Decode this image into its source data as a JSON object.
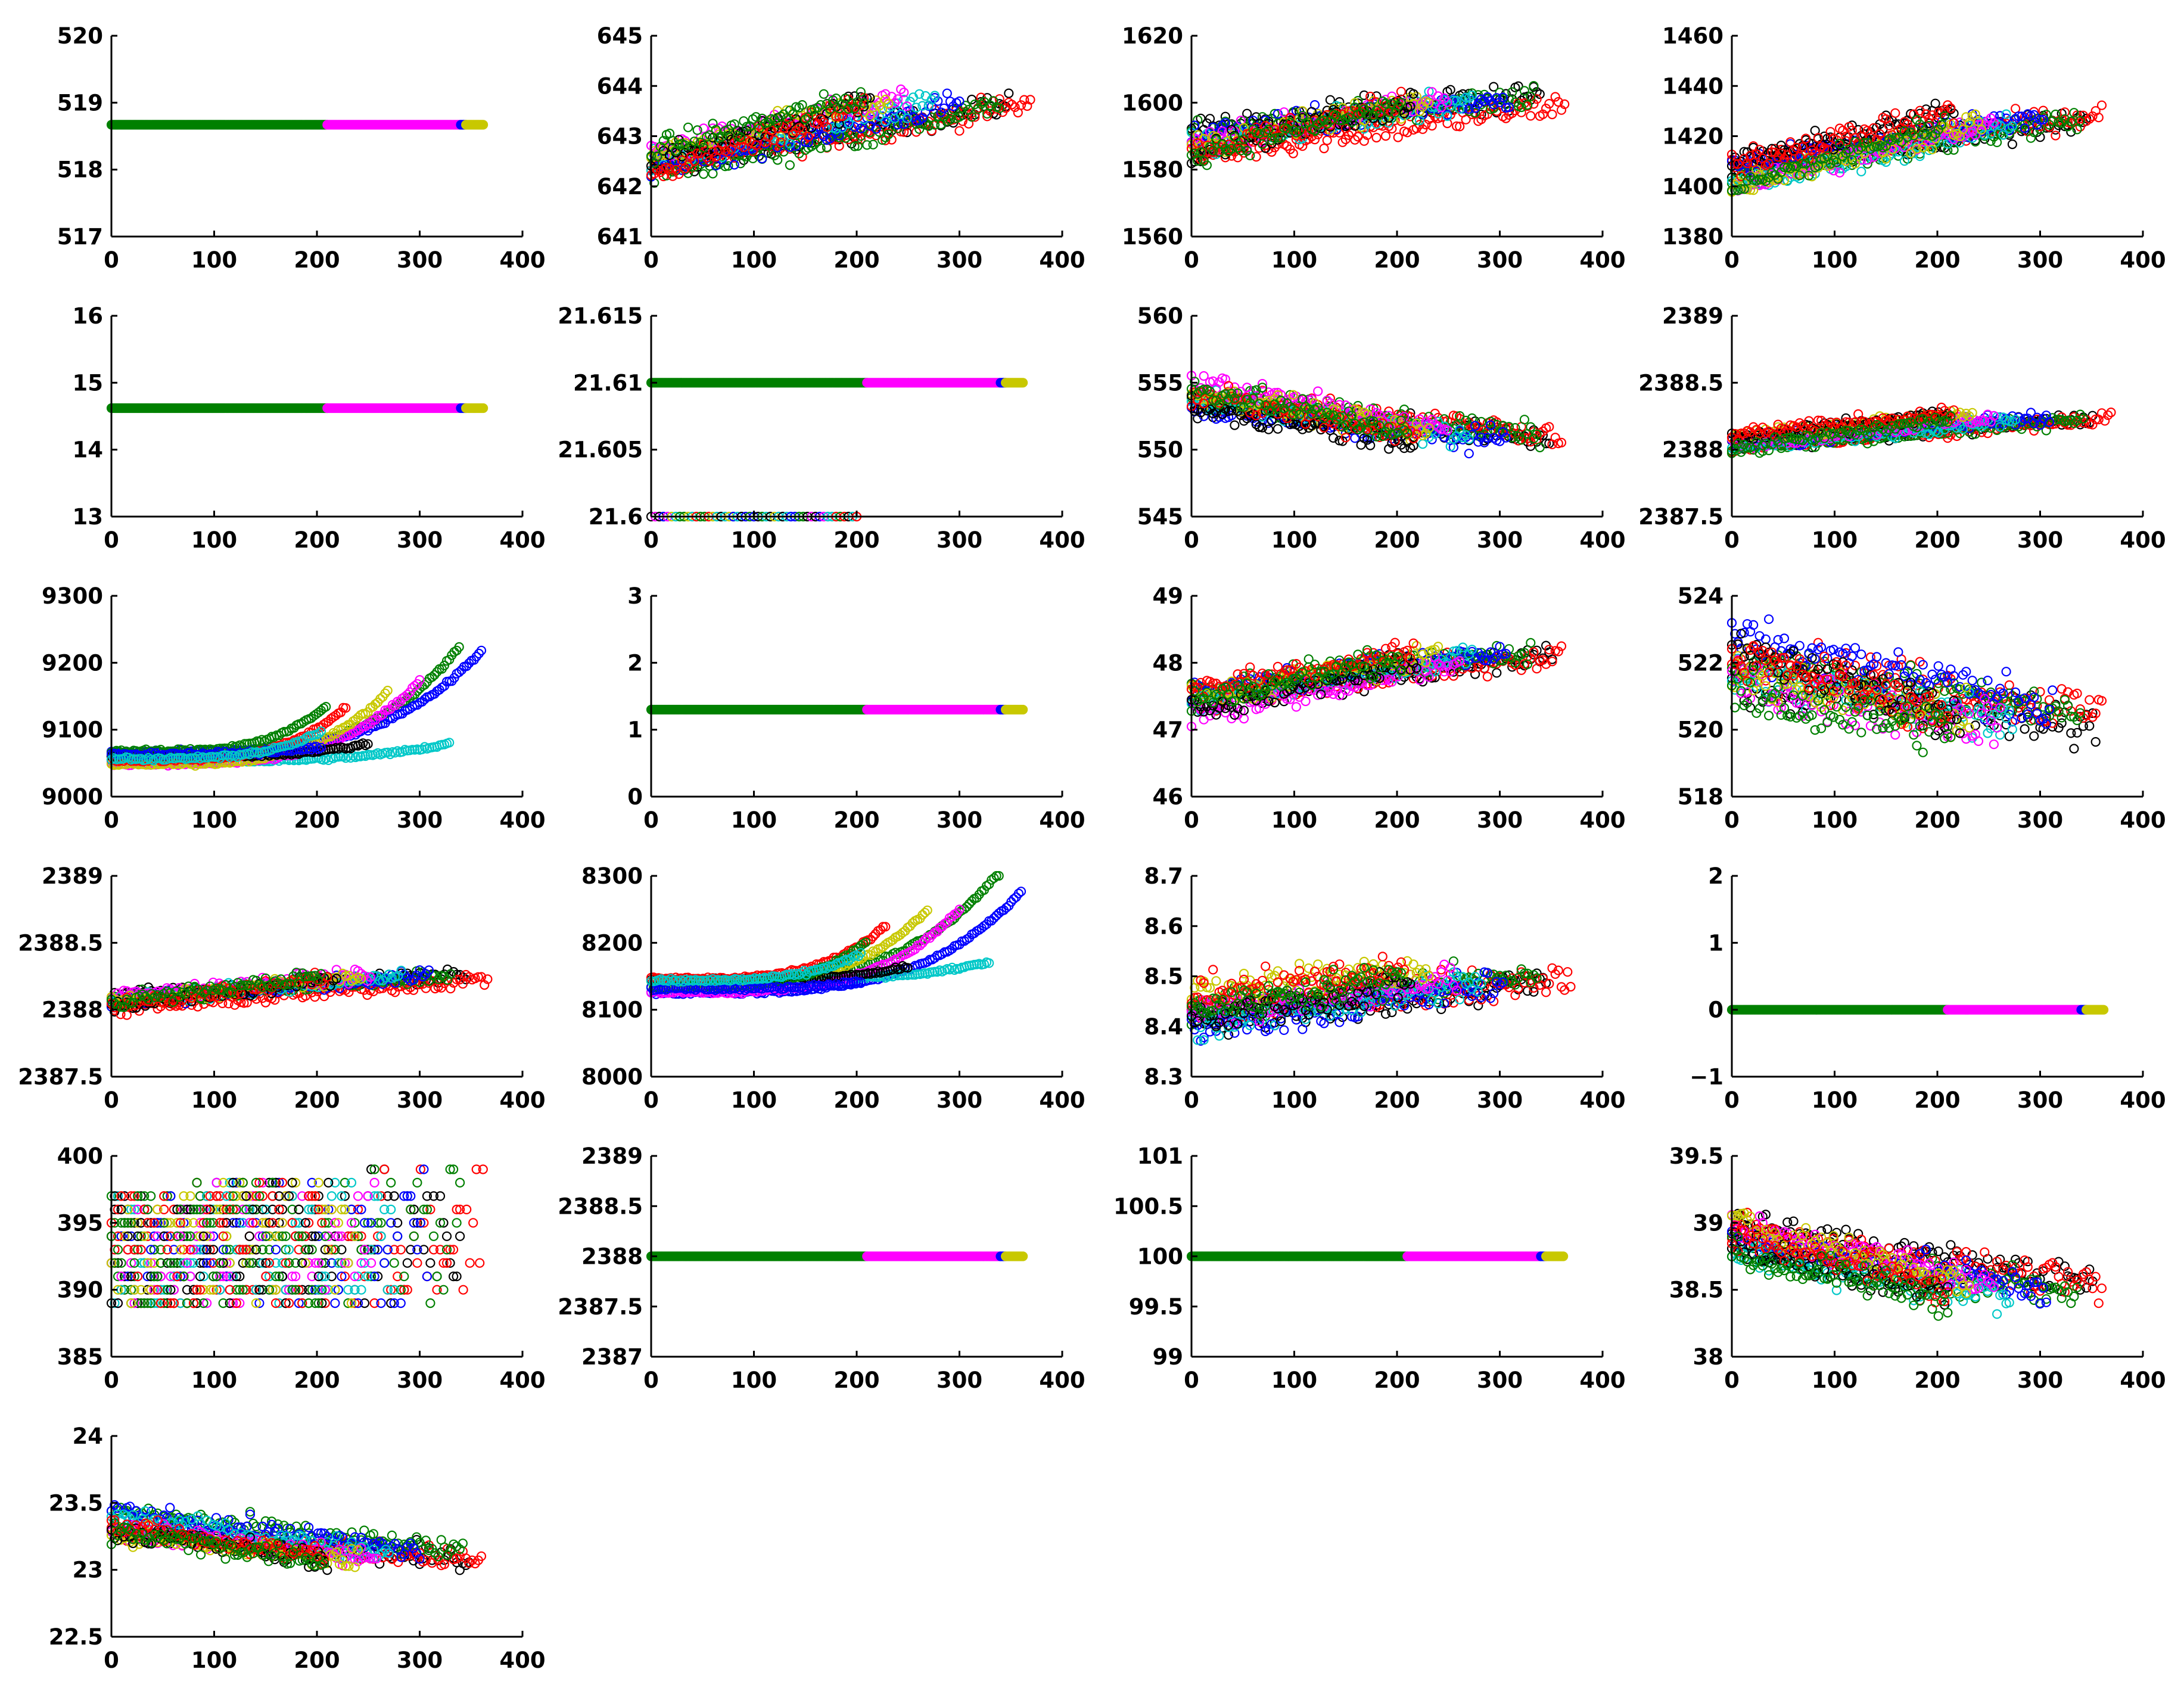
{
  "figure": {
    "description_free": true
  },
  "colors": {
    "black": "#000000",
    "red": "#ff0000",
    "green": "#008000",
    "blue": "#0000ff",
    "cyan": "#00c8c8",
    "magenta": "#ff00ff",
    "yellow": "#c8c800"
  },
  "chart_data": [
    {
      "type": "scatter",
      "pattern": "flat",
      "xlim": [
        0,
        400
      ],
      "xticks": [
        "0",
        "100",
        "200",
        "300",
        "400"
      ],
      "ylim": [
        517,
        520
      ],
      "yticks": [
        "517",
        "518",
        "519",
        "520"
      ],
      "flat_value": 518.67
    },
    {
      "type": "scatter",
      "pattern": "band_up",
      "xlim": [
        0,
        400
      ],
      "xticks": [
        "0",
        "100",
        "200",
        "300",
        "400"
      ],
      "ylim": [
        641,
        645
      ],
      "yticks": [
        "641",
        "642",
        "643",
        "644",
        "645"
      ],
      "start": 642.5,
      "end": 643.7,
      "spread": 0.9
    },
    {
      "type": "scatter",
      "pattern": "band_up",
      "xlim": [
        0,
        400
      ],
      "xticks": [
        "0",
        "100",
        "200",
        "300",
        "400"
      ],
      "ylim": [
        1560,
        1620
      ],
      "yticks": [
        "1560",
        "1580",
        "1600",
        "1620"
      ],
      "start": 1588,
      "end": 1601,
      "spread": 14
    },
    {
      "type": "scatter",
      "pattern": "band_up",
      "xlim": [
        0,
        400
      ],
      "xticks": [
        "0",
        "100",
        "200",
        "300",
        "400"
      ],
      "ylim": [
        1380,
        1460
      ],
      "yticks": [
        "1380",
        "1400",
        "1420",
        "1440",
        "1460"
      ],
      "start": 1405,
      "end": 1428,
      "spread": 18
    },
    {
      "type": "scatter",
      "pattern": "flat",
      "xlim": [
        0,
        400
      ],
      "xticks": [
        "0",
        "100",
        "200",
        "300",
        "400"
      ],
      "ylim": [
        13,
        16
      ],
      "yticks": [
        "13",
        "14",
        "15",
        "16"
      ],
      "flat_value": 14.62
    },
    {
      "type": "scatter",
      "pattern": "two_level",
      "xlim": [
        0,
        400
      ],
      "xticks": [
        "0",
        "100",
        "200",
        "300",
        "400"
      ],
      "ylim": [
        21.6,
        21.615
      ],
      "yticks": [
        "21.6",
        "21.605",
        "21.61",
        "21.615"
      ],
      "flat_value": 21.61,
      "low_value": 21.6,
      "low_xmax": 200
    },
    {
      "type": "scatter",
      "pattern": "band_down",
      "xlim": [
        0,
        400
      ],
      "xticks": [
        "0",
        "100",
        "200",
        "300",
        "400"
      ],
      "ylim": [
        545,
        560
      ],
      "yticks": [
        "545",
        "550",
        "555",
        "560"
      ],
      "start": 554,
      "end": 551,
      "spread": 3.2
    },
    {
      "type": "scatter",
      "pattern": "band_up",
      "xlim": [
        0,
        400
      ],
      "xticks": [
        "0",
        "100",
        "200",
        "300",
        "400"
      ],
      "ylim": [
        2387.5,
        2389
      ],
      "yticks": [
        "2387.5",
        "2388",
        "2388.5",
        "2389"
      ],
      "start": 2388.05,
      "end": 2388.25,
      "spread": 0.18
    },
    {
      "type": "scatter",
      "pattern": "fan_up",
      "xlim": [
        0,
        400
      ],
      "xticks": [
        "0",
        "100",
        "200",
        "300",
        "400"
      ],
      "ylim": [
        9000,
        9300
      ],
      "yticks": [
        "9000",
        "9100",
        "9200",
        "9300"
      ],
      "base": 9060,
      "spread": 30
    },
    {
      "type": "scatter",
      "pattern": "flat",
      "xlim": [
        0,
        400
      ],
      "xticks": [
        "0",
        "100",
        "200",
        "300",
        "400"
      ],
      "ylim": [
        0,
        3
      ],
      "yticks": [
        "0",
        "1",
        "2",
        "3"
      ],
      "flat_value": 1.3
    },
    {
      "type": "scatter",
      "pattern": "band_up",
      "xlim": [
        0,
        400
      ],
      "xticks": [
        "0",
        "100",
        "200",
        "300",
        "400"
      ],
      "ylim": [
        46,
        49
      ],
      "yticks": [
        "46",
        "47",
        "48",
        "49"
      ],
      "start": 47.4,
      "end": 48.1,
      "spread": 0.7
    },
    {
      "type": "scatter",
      "pattern": "band_down",
      "xlim": [
        0,
        400
      ],
      "xticks": [
        "0",
        "100",
        "200",
        "300",
        "400"
      ],
      "ylim": [
        518,
        524
      ],
      "yticks": [
        "518",
        "520",
        "522",
        "524"
      ],
      "start": 521.8,
      "end": 520.3,
      "spread": 2.6
    },
    {
      "type": "scatter",
      "pattern": "band_up",
      "xlim": [
        0,
        400
      ],
      "xticks": [
        "0",
        "100",
        "200",
        "300",
        "400"
      ],
      "ylim": [
        2387.5,
        2389
      ],
      "yticks": [
        "2387.5",
        "2388",
        "2388.5",
        "2389"
      ],
      "start": 2388.05,
      "end": 2388.25,
      "spread": 0.18
    },
    {
      "type": "scatter",
      "pattern": "fan_up",
      "xlim": [
        0,
        400
      ],
      "xticks": [
        "0",
        "100",
        "200",
        "300",
        "400"
      ],
      "ylim": [
        8000,
        8300
      ],
      "yticks": [
        "8000",
        "8100",
        "8200",
        "8300"
      ],
      "base": 8140,
      "spread": 30
    },
    {
      "type": "scatter",
      "pattern": "band_up",
      "xlim": [
        0,
        400
      ],
      "xticks": [
        "0",
        "100",
        "200",
        "300",
        "400"
      ],
      "ylim": [
        8.3,
        8.7
      ],
      "yticks": [
        "8.3",
        "8.4",
        "8.5",
        "8.6",
        "8.7"
      ],
      "start": 8.43,
      "end": 8.5,
      "spread": 0.12
    },
    {
      "type": "scatter",
      "pattern": "flat",
      "xlim": [
        0,
        400
      ],
      "xticks": [
        "0",
        "100",
        "200",
        "300",
        "400"
      ],
      "ylim": [
        -1,
        2
      ],
      "yticks": [
        "−1",
        "0",
        "1",
        "2"
      ],
      "flat_value": 0
    },
    {
      "type": "scatter",
      "pattern": "levels",
      "xlim": [
        0,
        400
      ],
      "xticks": [
        "0",
        "100",
        "200",
        "300",
        "400"
      ],
      "ylim": [
        385,
        400
      ],
      "yticks": [
        "385",
        "390",
        "395",
        "400"
      ],
      "levels": [
        389,
        390,
        391,
        392,
        393,
        394,
        395,
        396,
        397
      ]
    },
    {
      "type": "scatter",
      "pattern": "flat",
      "xlim": [
        0,
        400
      ],
      "xticks": [
        "0",
        "100",
        "200",
        "300",
        "400"
      ],
      "ylim": [
        2387,
        2389
      ],
      "yticks": [
        "2387",
        "2387.5",
        "2388",
        "2388.5",
        "2389"
      ],
      "flat_value": 2388
    },
    {
      "type": "scatter",
      "pattern": "flat",
      "xlim": [
        0,
        400
      ],
      "xticks": [
        "0",
        "100",
        "200",
        "300",
        "400"
      ],
      "ylim": [
        99,
        101
      ],
      "yticks": [
        "99",
        "99.5",
        "100",
        "100.5",
        "101"
      ],
      "flat_value": 100
    },
    {
      "type": "scatter",
      "pattern": "band_down",
      "xlim": [
        0,
        400
      ],
      "xticks": [
        "0",
        "100",
        "200",
        "300",
        "400"
      ],
      "ylim": [
        38,
        39.5
      ],
      "yticks": [
        "38",
        "38.5",
        "39",
        "39.5"
      ],
      "start": 38.9,
      "end": 38.5,
      "spread": 0.45
    },
    {
      "type": "scatter",
      "pattern": "band_down",
      "xlim": [
        0,
        400
      ],
      "xticks": [
        "0",
        "100",
        "200",
        "300",
        "400"
      ],
      "ylim": [
        22.5,
        24
      ],
      "yticks": [
        "22.5",
        "23",
        "23.5",
        "24"
      ],
      "start": 23.35,
      "end": 23.1,
      "spread": 0.3
    }
  ]
}
